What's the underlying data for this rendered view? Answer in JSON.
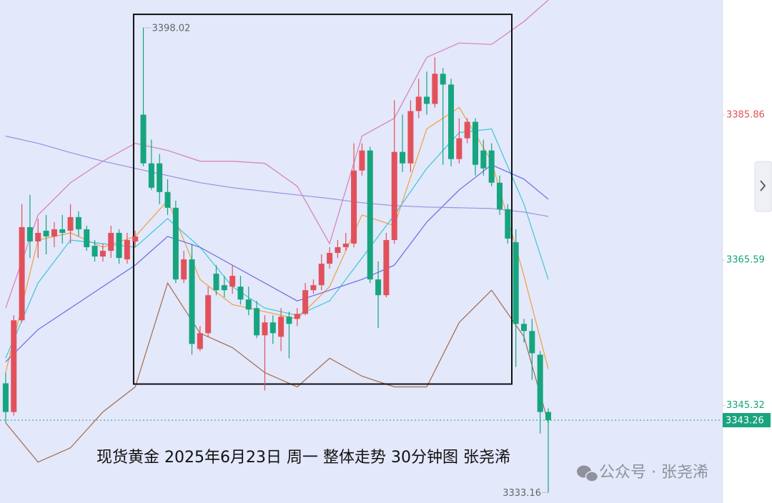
{
  "chart_data": {
    "type": "candlestick",
    "open": [
      3348.4,
      3344.4,
      3357.2,
      3370.2,
      3368.2,
      3369.7,
      3368.9,
      3369.9,
      3369.7,
      3371.6,
      3369.9,
      3367.6,
      3366.1,
      3366.9,
      3369.4,
      3365.7,
      3368.2,
      3385.9,
      3379.1,
      3379.1,
      3375.1,
      3372.9,
      3362.9,
      3365.7,
      3353.2,
      3355.4,
      3363.7,
      3362.1,
      3361.9,
      3361.9,
      3360.1,
      3358.9,
      3355.1,
      3356.9,
      3354.9,
      3357.7,
      3357.4,
      3358.1,
      3361.4,
      3362.1,
      3365.1,
      3366.6,
      3367.4,
      3367.9,
      3378.1,
      3380.9,
      3362.9,
      3360.7,
      3368.4,
      3380.7,
      3379.1,
      3386.4,
      3388.4,
      3387.4,
      3391.6,
      3390.1,
      3379.7,
      3382.6,
      3384.9,
      3380.9,
      3380.9,
      3376.4,
      3372.7,
      3368.1,
      3356.7,
      3355.7,
      3352.4,
      3344.4
    ],
    "high": [
      3349.9,
      3357.9,
      3373.4,
      3374.7,
      3371.4,
      3371.9,
      3370.9,
      3371.9,
      3373.4,
      3372.4,
      3370.4,
      3368.4,
      3367.9,
      3370.4,
      3369.9,
      3369.4,
      3369.7,
      3398.02,
      3382.4,
      3380.4,
      3376.9,
      3373.9,
      3366.9,
      3367.9,
      3356.4,
      3361.9,
      3364.9,
      3363.4,
      3364.9,
      3363.4,
      3361.9,
      3359.9,
      3357.9,
      3357.9,
      3358.9,
      3358.4,
      3358.9,
      3362.4,
      3362.9,
      3366.4,
      3367.4,
      3368.4,
      3369.4,
      3381.9,
      3381.9,
      3381.4,
      3365.4,
      3369.4,
      3387.9,
      3385.9,
      3387.9,
      3390.9,
      3391.9,
      3393.9,
      3392.4,
      3390.9,
      3385.4,
      3385.4,
      3385.4,
      3382.4,
      3381.9,
      3377.4,
      3373.4,
      3369.9,
      3357.4,
      3357.4,
      3352.9,
      3344.9
    ],
    "low": [
      3342.9,
      3343.9,
      3356.9,
      3365.9,
      3365.9,
      3366.4,
      3367.4,
      3367.9,
      3367.9,
      3368.9,
      3366.9,
      3365.4,
      3365.4,
      3365.9,
      3365.1,
      3365.1,
      3367.4,
      3378.7,
      3375.4,
      3373.4,
      3371.9,
      3362.4,
      3362.4,
      3352.4,
      3352.9,
      3354.9,
      3360.7,
      3360.4,
      3360.9,
      3359.4,
      3357.9,
      3354.7,
      3347.4,
      3353.9,
      3352.9,
      3351.9,
      3356.4,
      3357.9,
      3360.9,
      3361.4,
      3364.4,
      3365.9,
      3366.9,
      3367.4,
      3377.4,
      3362.4,
      3356.1,
      3360.4,
      3367.9,
      3377.9,
      3377.9,
      3385.4,
      3385.9,
      3386.9,
      3378.9,
      3378.7,
      3379.1,
      3381.9,
      3377.4,
      3377.4,
      3375.9,
      3371.9,
      3367.9,
      3350.7,
      3354.1,
      3348.9,
      3341.4,
      3333.16
    ],
    "close": [
      3344.4,
      3357.2,
      3370.2,
      3368.2,
      3369.4,
      3368.9,
      3369.9,
      3369.4,
      3371.6,
      3369.9,
      3367.4,
      3366.1,
      3366.9,
      3369.4,
      3365.9,
      3368.4,
      3368.9,
      3379.1,
      3375.7,
      3375.1,
      3372.9,
      3362.9,
      3365.7,
      3353.9,
      3355.4,
      3360.7,
      3361.4,
      3361.4,
      3363.4,
      3360.1,
      3358.7,
      3355.1,
      3356.9,
      3355.4,
      3357.7,
      3356.7,
      3358.1,
      3361.4,
      3362.1,
      3365.1,
      3366.6,
      3367.4,
      3367.9,
      3378.1,
      3380.9,
      3362.9,
      3360.7,
      3368.4,
      3380.7,
      3379.1,
      3386.4,
      3388.4,
      3387.4,
      3391.6,
      3390.1,
      3379.7,
      3382.6,
      3384.9,
      3378.9,
      3378.4,
      3376.4,
      3372.7,
      3368.6,
      3356.7,
      3355.7,
      3352.6,
      3344.4,
      3343.26
    ],
    "up_color": "#e2515b",
    "down_color": "#16a57f",
    "xlim": [
      -0.7,
      88.45
    ],
    "ylim": [
      3331.7,
      3401.9
    ],
    "yticks": [
      3385.86,
      3365.59,
      3345.32
    ],
    "ytick_colors": [
      "#e0525a",
      "#17a27c",
      "#17a27c"
    ],
    "last_price": 3343.26,
    "last_price_color": "#1aa37e",
    "high_label": 3398.02,
    "low_label": 3333.16,
    "indicators": {
      "x": [
        0,
        4,
        8,
        12,
        16,
        20,
        24,
        28,
        32,
        36,
        40,
        44,
        48,
        52,
        56,
        60,
        64,
        67
      ],
      "series": [
        {
          "color": "#d77fb7",
          "values": [
            3358.9,
            3371.9,
            3376.4,
            3379.4,
            3381.9,
            3380.9,
            3379.4,
            3379.4,
            3379.1,
            3375.9,
            3367.9,
            3382.9,
            3385.4,
            3393.9,
            3395.9,
            3395.7,
            3398.9,
            3401.9
          ]
        },
        {
          "color": "#a36a4c",
          "values": [
            3342.9,
            3337.4,
            3339.4,
            3344.4,
            3347.9,
            3362.4,
            3355.4,
            3353.4,
            3349.9,
            3347.9,
            3351.9,
            3349.4,
            3347.9,
            3347.9,
            3356.9,
            3361.4,
            3354.9,
            3342.9
          ]
        },
        {
          "color": "#f0a03c",
          "values": [
            3349.9,
            3368.4,
            3369.4,
            3367.4,
            3368.9,
            3373.9,
            3362.9,
            3359.4,
            3358.4,
            3357.4,
            3361.9,
            3371.9,
            3370.4,
            3383.9,
            3386.9,
            3379.4,
            3363.4,
            3350.4
          ]
        },
        {
          "color": "#3cc7d6",
          "values": [
            3351.9,
            3362.4,
            3368.4,
            3367.9,
            3367.4,
            3371.4,
            3367.4,
            3361.9,
            3358.9,
            3357.9,
            3359.9,
            3365.9,
            3371.9,
            3378.4,
            3383.4,
            3383.9,
            3373.4,
            3362.9
          ]
        },
        {
          "color": "#6b6be0",
          "values": [
            3351.4,
            3355.9,
            3358.9,
            3361.9,
            3364.9,
            3368.9,
            3367.4,
            3364.9,
            3362.4,
            3359.9,
            3361.4,
            3362.9,
            3364.9,
            3370.9,
            3375.4,
            3378.9,
            3376.9,
            3374.1
          ]
        },
        {
          "color": "#9c8ee0",
          "values": [
            3382.9,
            3381.9,
            3380.6,
            3379.4,
            3378.4,
            3377.4,
            3376.4,
            3375.7,
            3375.2,
            3374.7,
            3374.2,
            3373.6,
            3373.2,
            3373.0,
            3372.9,
            3372.8,
            3372.3,
            3371.7
          ]
        }
      ]
    },
    "box": {
      "x": [
        15.8,
        62.5
      ],
      "y": [
        3348.3,
        3399.9
      ]
    },
    "annotation": "现货黄金 2025年6月23日 周一 整体走势 30分钟图 张尧浠",
    "watermark": "公众号 · 张尧浠"
  }
}
